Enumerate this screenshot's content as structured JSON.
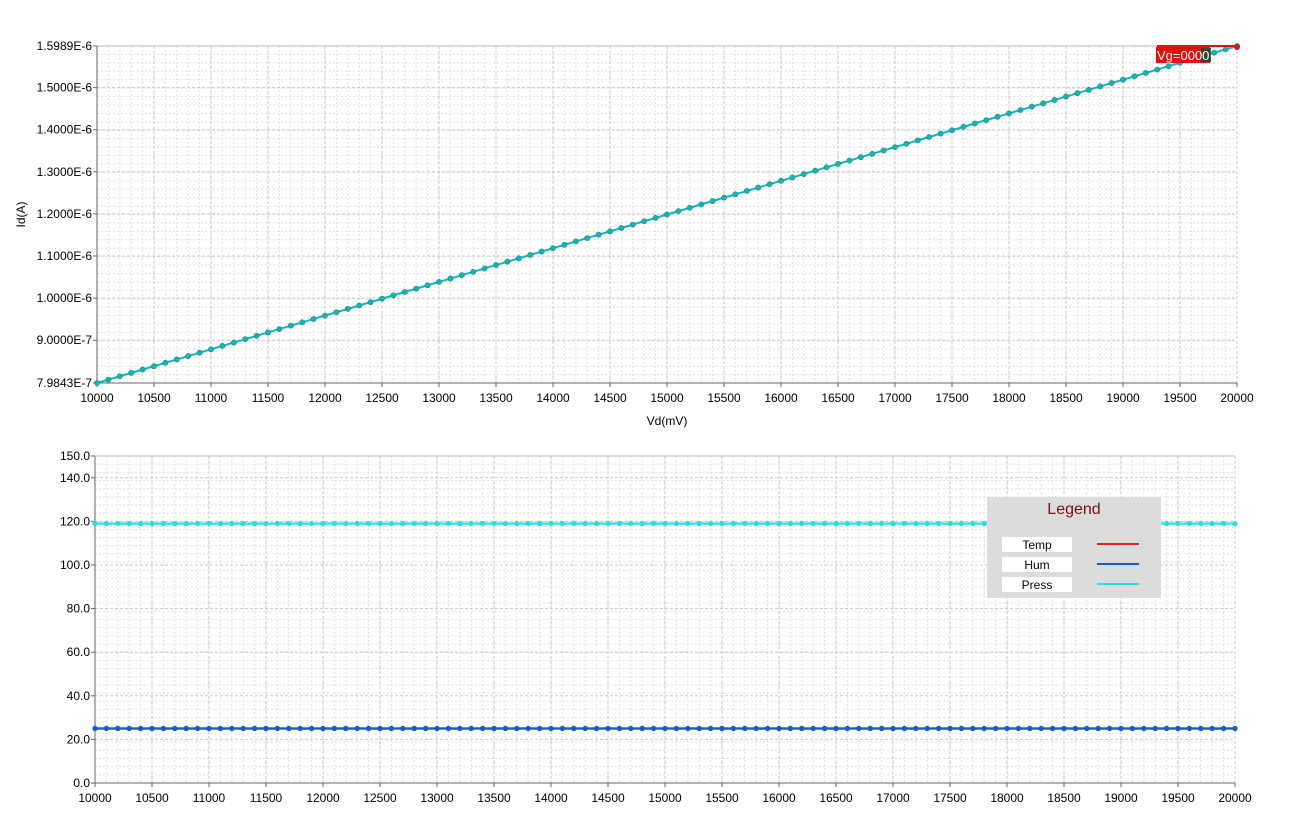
{
  "chart_data": [
    {
      "type": "line",
      "xlabel": "Vd(mV)",
      "ylabel": "Id(A)",
      "xlim": [
        10000,
        20000
      ],
      "ylim": [
        7.9843e-07,
        1.5989e-06
      ],
      "x_ticks": [
        "10000",
        "10500",
        "11000",
        "11500",
        "12000",
        "12500",
        "13000",
        "13500",
        "14000",
        "14500",
        "15000",
        "15500",
        "16000",
        "16500",
        "17000",
        "17500",
        "18000",
        "18500",
        "19000",
        "19500",
        "20000"
      ],
      "y_ticks": [
        {
          "value": 1.5989e-06,
          "label": "1.5989E-6"
        },
        {
          "value": 1.5e-06,
          "label": "1.5000E-6"
        },
        {
          "value": 1.4e-06,
          "label": "1.4000E-6"
        },
        {
          "value": 1.3e-06,
          "label": "1.3000E-6"
        },
        {
          "value": 1.2e-06,
          "label": "1.2000E-6"
        },
        {
          "value": 1.1e-06,
          "label": "1.1000E-6"
        },
        {
          "value": 1e-06,
          "label": "1.0000E-6"
        },
        {
          "value": 9e-07,
          "label": "9.0000E-7"
        },
        {
          "value": 7.9843e-07,
          "label": "7.9843E-7"
        }
      ],
      "grid": true,
      "series": [
        {
          "color": "#19b4b4",
          "x_start": 10000,
          "x_end": 20000,
          "x_step": 100,
          "y_start": 7.9843e-07,
          "y_end": 1.5989e-06
        }
      ],
      "cursor": {
        "label": "Vg=0000",
        "color": "#e01010",
        "x": 20000,
        "y": 1.5989e-06
      }
    },
    {
      "type": "line",
      "xlim": [
        10000,
        20000
      ],
      "ylim": [
        0,
        150
      ],
      "x_ticks": [
        "10000",
        "10500",
        "11000",
        "11500",
        "12000",
        "12500",
        "13000",
        "13500",
        "14000",
        "14500",
        "15000",
        "15500",
        "16000",
        "16500",
        "17000",
        "17500",
        "18000",
        "18500",
        "19000",
        "19500",
        "20000"
      ],
      "y_ticks": [
        {
          "value": 150,
          "label": "150.0"
        },
        {
          "value": 140,
          "label": "140.0"
        },
        {
          "value": 120,
          "label": "120.0"
        },
        {
          "value": 100,
          "label": "100.0"
        },
        {
          "value": 80,
          "label": "80.0"
        },
        {
          "value": 60,
          "label": "60.0"
        },
        {
          "value": 40,
          "label": "40.0"
        },
        {
          "value": 20,
          "label": "20.0"
        },
        {
          "value": 0,
          "label": "0.0"
        }
      ],
      "grid": true,
      "legend": {
        "title": "Legend",
        "placement": "top-right"
      },
      "series": [
        {
          "name": "Temp",
          "color": "#e02020",
          "value": 25,
          "x_start": 10000,
          "x_end": 20000,
          "x_step": 100
        },
        {
          "name": "Hum",
          "color": "#1060c8",
          "value": 25,
          "x_start": 10000,
          "x_end": 20000,
          "x_step": 100
        },
        {
          "name": "Press",
          "color": "#20e0e0",
          "value": 119,
          "x_start": 10000,
          "x_end": 20000,
          "x_step": 100
        }
      ]
    }
  ]
}
